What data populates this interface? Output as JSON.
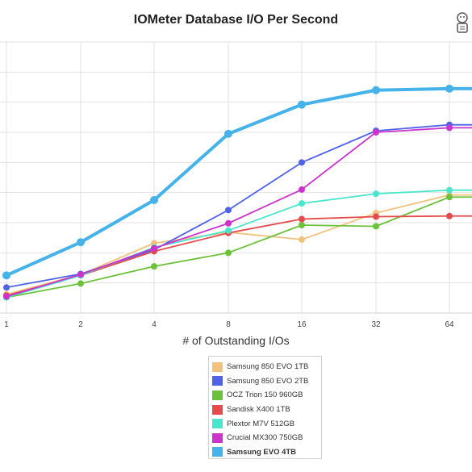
{
  "chart_data": {
    "type": "line",
    "title": "IOMeter Database I/O Per Second",
    "xlabel": "# of Outstanding I/Os",
    "ylabel": "",
    "x": [
      "1",
      "2",
      "4",
      "8",
      "16",
      "32",
      "64"
    ],
    "ylim": [
      0,
      9
    ],
    "grid": true,
    "legend_position": "bottom-center",
    "series": [
      {
        "name": "Samsung 850 EVO 1TB",
        "color": "#f1c27d",
        "values": [
          0.62,
          1.28,
          2.32,
          2.68,
          2.44,
          3.32,
          3.92
        ]
      },
      {
        "name": "Samsung 850 EVO 2TB",
        "color": "#4f63e6",
        "values": [
          0.85,
          1.3,
          2.1,
          3.42,
          5.0,
          6.05,
          6.25
        ]
      },
      {
        "name": "OCZ Trion 150 960GB",
        "color": "#6cc13a",
        "values": [
          0.52,
          0.98,
          1.55,
          2.0,
          2.92,
          2.88,
          3.85
        ]
      },
      {
        "name": "Sandisk X400 1TB",
        "color": "#e54b4b",
        "values": [
          0.58,
          1.25,
          2.05,
          2.66,
          3.12,
          3.2,
          3.22
        ]
      },
      {
        "name": "Plextor M7V 512GB",
        "color": "#48e6cc",
        "values": [
          0.52,
          1.25,
          2.18,
          2.74,
          3.64,
          3.96,
          4.08
        ]
      },
      {
        "name": "Crucial MX300 750GB",
        "color": "#cc33cc",
        "values": [
          0.55,
          1.28,
          2.15,
          2.98,
          4.1,
          6.0,
          6.15
        ]
      },
      {
        "name": "Samsung EVO 4TB",
        "color": "#45b2ea",
        "values": [
          1.25,
          2.35,
          3.75,
          5.95,
          6.92,
          7.4,
          7.45
        ]
      }
    ]
  }
}
